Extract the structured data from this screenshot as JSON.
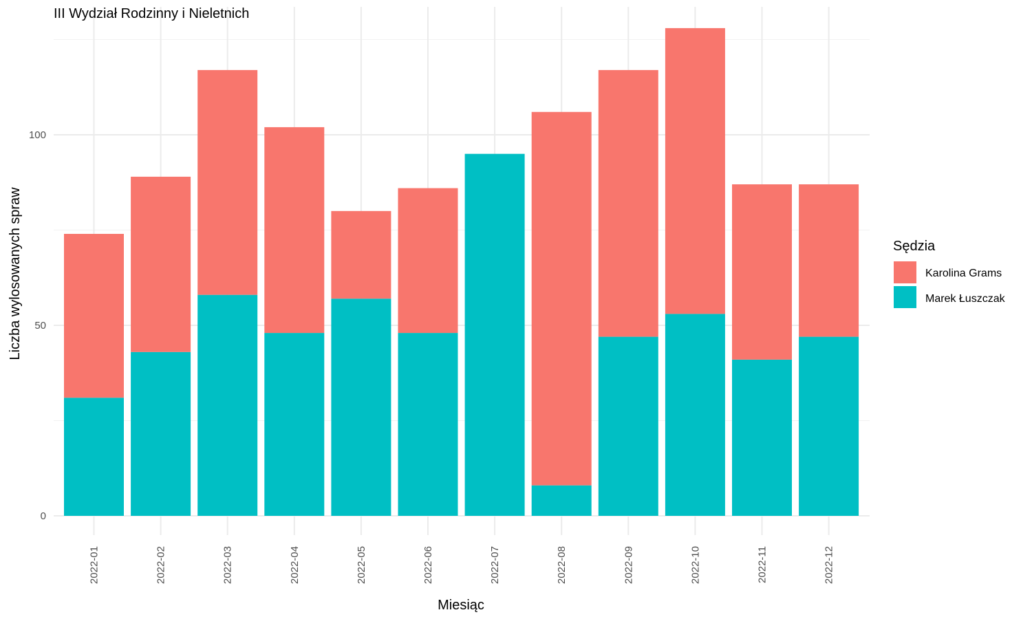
{
  "chart_data": {
    "type": "bar",
    "stacked": true,
    "title": "III Wydział Rodzinny i Nieletnich",
    "xlabel": "Miesiąc",
    "ylabel": "Liczba wylosowanych spraw",
    "ylim": [
      0,
      128
    ],
    "yticks": [
      0,
      50,
      100
    ],
    "grid": true,
    "legend": {
      "title": "Sędzia",
      "position": "right"
    },
    "categories": [
      "2022-01",
      "2022-02",
      "2022-03",
      "2022-04",
      "2022-05",
      "2022-06",
      "2022-07",
      "2022-08",
      "2022-09",
      "2022-10",
      "2022-11",
      "2022-12"
    ],
    "series": [
      {
        "name": "Marek Łuszczak",
        "color": "#00BFC4",
        "values": [
          31,
          43,
          58,
          48,
          57,
          48,
          95,
          8,
          47,
          53,
          41,
          47
        ]
      },
      {
        "name": "Karolina Grams",
        "color": "#F8766D",
        "values": [
          43,
          46,
          59,
          54,
          23,
          38,
          0,
          98,
          70,
          75,
          46,
          40
        ]
      }
    ]
  }
}
